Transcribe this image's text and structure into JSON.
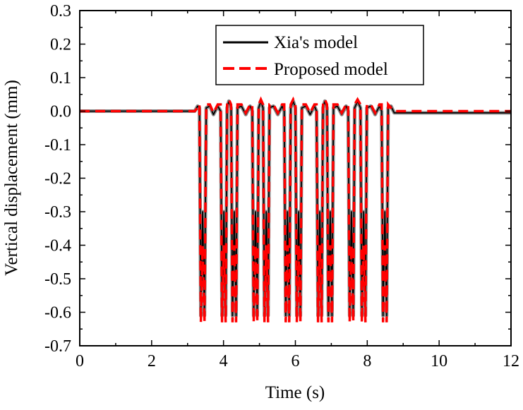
{
  "chart_data": {
    "type": "line",
    "title": "",
    "xlabel": "Time (s)",
    "ylabel": "Vertical displacement (mm)",
    "xlim": [
      0,
      12
    ],
    "ylim": [
      -0.7,
      0.3
    ],
    "xticks": [
      0,
      2,
      4,
      6,
      8,
      10,
      12
    ],
    "xtick_labels": [
      "0",
      "2",
      "4",
      "6",
      "8",
      "10",
      "12"
    ],
    "yticks": [
      0.3,
      0.2,
      0.1,
      0.0,
      -0.1,
      -0.2,
      -0.3,
      -0.4,
      -0.5,
      -0.6,
      -0.7
    ],
    "ytick_labels": [
      "0.3",
      "0.2",
      "0.1",
      "0.0",
      "-0.1",
      "-0.2",
      "-0.3",
      "-0.4",
      "-0.5",
      "-0.6",
      "-0.7"
    ],
    "grid": false,
    "legend_position": "top-center",
    "x": [
      0,
      3.2,
      3.28,
      3.33,
      3.37,
      3.42,
      3.47,
      3.52,
      3.62,
      3.72,
      3.84,
      3.92,
      3.96,
      4.01,
      4.06,
      4.1,
      4.15,
      4.21,
      4.25,
      4.3,
      4.35,
      4.39,
      4.5,
      4.62,
      4.74,
      4.8,
      4.84,
      4.89,
      4.94,
      4.98,
      5.04,
      5.1,
      5.14,
      5.19,
      5.24,
      5.28,
      5.39,
      5.51,
      5.63,
      5.69,
      5.73,
      5.78,
      5.83,
      5.87,
      5.94,
      6.0,
      6.04,
      6.09,
      6.14,
      6.18,
      6.29,
      6.41,
      6.53,
      6.59,
      6.63,
      6.68,
      6.73,
      6.77,
      6.82,
      6.88,
      6.92,
      6.97,
      7.02,
      7.06,
      7.17,
      7.29,
      7.41,
      7.47,
      7.51,
      7.56,
      7.61,
      7.65,
      7.73,
      7.81,
      7.85,
      7.9,
      7.95,
      7.99,
      8.1,
      8.22,
      8.34,
      8.4,
      8.44,
      8.49,
      8.54,
      8.58,
      8.66,
      8.75,
      12
    ],
    "series": [
      {
        "name": "Xia's model",
        "color": "#000000",
        "style": "solid",
        "values": [
          0,
          0,
          0.015,
          0.01,
          -0.61,
          -0.3,
          -0.61,
          0.01,
          0.015,
          -0.01,
          0.015,
          0.0,
          -0.61,
          -0.3,
          -0.61,
          0.01,
          0.03,
          0.01,
          -0.61,
          -0.3,
          -0.61,
          0.01,
          0.015,
          -0.01,
          0.015,
          0.0,
          -0.61,
          -0.3,
          -0.61,
          0.01,
          0.03,
          0.01,
          -0.61,
          -0.3,
          -0.61,
          0.01,
          0.015,
          -0.01,
          0.015,
          0.0,
          -0.61,
          -0.3,
          -0.61,
          0.01,
          0.03,
          0.01,
          -0.61,
          -0.3,
          -0.61,
          0.01,
          0.015,
          -0.01,
          0.015,
          0.0,
          -0.61,
          -0.3,
          -0.61,
          0.01,
          0.03,
          0.01,
          -0.61,
          -0.3,
          -0.61,
          0.01,
          0.015,
          -0.01,
          0.015,
          0.0,
          -0.61,
          -0.3,
          -0.61,
          0.01,
          0.03,
          0.01,
          -0.61,
          -0.3,
          -0.61,
          0.01,
          0.015,
          -0.01,
          0.015,
          0.0,
          -0.61,
          -0.3,
          -0.61,
          0.01,
          0.015,
          -0.005,
          -0.005
        ]
      },
      {
        "name": "Proposed model",
        "color": "#ff0000",
        "style": "dashed",
        "values": [
          0,
          0,
          0.01,
          0.02,
          -0.63,
          -0.4,
          -0.63,
          0.02,
          0.02,
          -0.005,
          0.02,
          0.02,
          -0.63,
          -0.4,
          -0.63,
          0.02,
          0.035,
          0.02,
          -0.63,
          -0.4,
          -0.63,
          0.02,
          0.02,
          -0.005,
          0.02,
          0.02,
          -0.63,
          -0.4,
          -0.63,
          0.02,
          0.035,
          0.02,
          -0.63,
          -0.4,
          -0.63,
          0.02,
          0.02,
          -0.005,
          0.02,
          0.02,
          -0.63,
          -0.4,
          -0.63,
          0.02,
          0.035,
          0.02,
          -0.63,
          -0.4,
          -0.63,
          0.02,
          0.02,
          -0.005,
          0.02,
          0.02,
          -0.63,
          -0.4,
          -0.63,
          0.02,
          0.035,
          0.02,
          -0.63,
          -0.4,
          -0.63,
          0.02,
          0.02,
          -0.005,
          0.02,
          0.02,
          -0.63,
          -0.4,
          -0.63,
          0.02,
          0.035,
          0.02,
          -0.63,
          -0.4,
          -0.63,
          0.02,
          0.02,
          -0.005,
          0.02,
          0.02,
          -0.63,
          -0.4,
          -0.63,
          0.02,
          0.01,
          0,
          0
        ]
      }
    ]
  }
}
